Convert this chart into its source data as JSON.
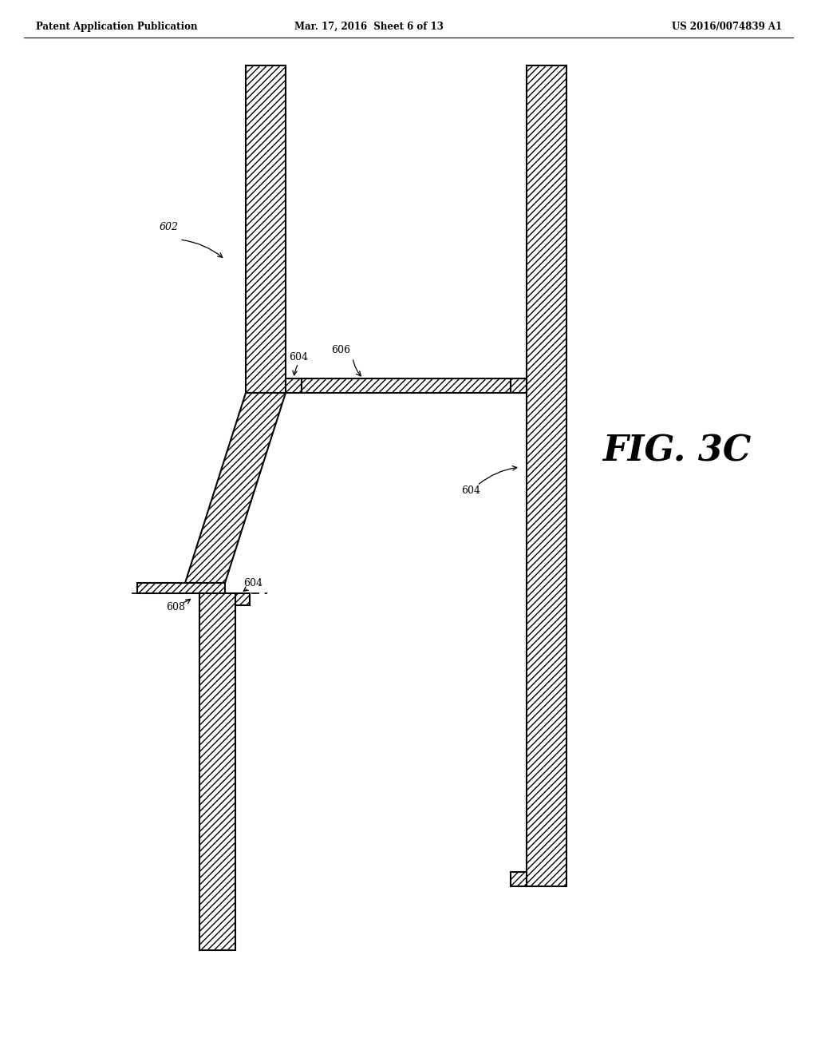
{
  "header_left": "Patent Application Publication",
  "header_mid": "Mar. 17, 2016  Sheet 6 of 13",
  "header_right": "US 2016/0074839 A1",
  "fig_label": "FIG. 3C",
  "background_color": "#ffffff",
  "label_602": "602",
  "label_604": "604",
  "label_606": "606",
  "label_608": "608",
  "page_width": 10.24,
  "page_height": 13.2
}
